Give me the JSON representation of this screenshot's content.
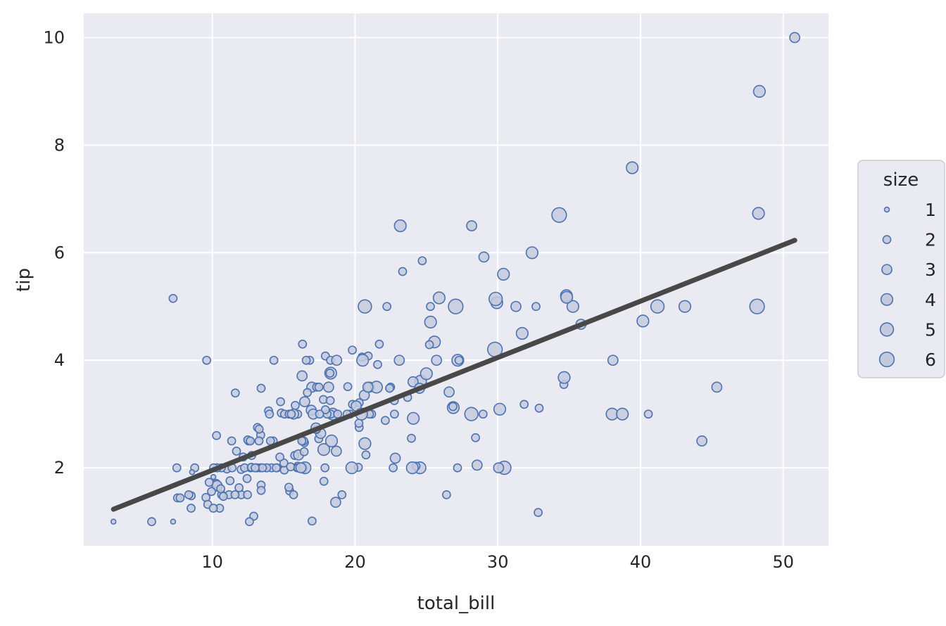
{
  "chart_data": {
    "type": "scatter",
    "title": "",
    "xlabel": "total_bill",
    "ylabel": "tip",
    "xlim": [
      0.99,
      53.17
    ],
    "ylim": [
      0.55,
      10.45
    ],
    "xticks": [
      10,
      20,
      30,
      40,
      50
    ],
    "yticks": [
      2,
      4,
      6,
      8,
      10
    ],
    "grid": true,
    "legend": {
      "title": "size",
      "placement": "right",
      "entries": [
        "1",
        "2",
        "3",
        "4",
        "5",
        "6"
      ]
    },
    "colors": {
      "background": "#eaeaf2",
      "grid": "#ffffff",
      "marker_fill": "#c4cade",
      "marker_edge": "#4c72b0",
      "line": "#484848"
    },
    "regression_line": {
      "x": [
        3.07,
        50.81
      ],
      "y": [
        1.23,
        6.23
      ]
    },
    "points": [
      [
        16.99,
        1.01,
        2
      ],
      [
        10.34,
        1.66,
        3
      ],
      [
        21.01,
        3.5,
        3
      ],
      [
        23.68,
        3.31,
        2
      ],
      [
        24.59,
        3.61,
        4
      ],
      [
        25.29,
        4.71,
        4
      ],
      [
        8.77,
        2.0,
        2
      ],
      [
        26.88,
        3.12,
        4
      ],
      [
        15.04,
        1.96,
        2
      ],
      [
        14.78,
        3.23,
        2
      ],
      [
        10.27,
        1.71,
        2
      ],
      [
        35.26,
        5.0,
        4
      ],
      [
        15.42,
        1.57,
        2
      ],
      [
        18.43,
        3.0,
        4
      ],
      [
        14.83,
        3.02,
        2
      ],
      [
        21.58,
        3.92,
        2
      ],
      [
        10.33,
        1.67,
        3
      ],
      [
        16.29,
        3.71,
        3
      ],
      [
        16.97,
        3.5,
        3
      ],
      [
        20.65,
        3.35,
        3
      ],
      [
        17.92,
        4.08,
        2
      ],
      [
        20.29,
        2.75,
        2
      ],
      [
        15.77,
        2.23,
        2
      ],
      [
        39.42,
        7.58,
        4
      ],
      [
        19.82,
        3.18,
        2
      ],
      [
        17.81,
        2.34,
        4
      ],
      [
        13.37,
        2.0,
        2
      ],
      [
        12.69,
        2.0,
        2
      ],
      [
        21.7,
        4.3,
        2
      ],
      [
        19.65,
        3.0,
        2
      ],
      [
        9.55,
        1.45,
        2
      ],
      [
        18.35,
        2.5,
        4
      ],
      [
        15.06,
        3.0,
        2
      ],
      [
        20.69,
        2.45,
        4
      ],
      [
        17.78,
        3.27,
        2
      ],
      [
        24.06,
        3.6,
        3
      ],
      [
        16.31,
        2.0,
        3
      ],
      [
        16.93,
        3.07,
        3
      ],
      [
        18.69,
        2.31,
        3
      ],
      [
        31.27,
        5.0,
        3
      ],
      [
        16.04,
        2.24,
        3
      ],
      [
        17.46,
        2.54,
        2
      ],
      [
        13.94,
        3.06,
        2
      ],
      [
        9.68,
        1.32,
        2
      ],
      [
        30.4,
        5.6,
        4
      ],
      [
        18.29,
        3.0,
        2
      ],
      [
        22.23,
        5.0,
        2
      ],
      [
        32.4,
        6.0,
        4
      ],
      [
        28.55,
        2.05,
        3
      ],
      [
        18.04,
        3.0,
        2
      ],
      [
        12.54,
        2.5,
        2
      ],
      [
        10.29,
        2.6,
        2
      ],
      [
        34.81,
        5.2,
        4
      ],
      [
        9.94,
        1.56,
        2
      ],
      [
        25.56,
        4.34,
        4
      ],
      [
        19.49,
        3.51,
        2
      ],
      [
        38.01,
        3.0,
        4
      ],
      [
        26.41,
        1.5,
        2
      ],
      [
        11.24,
        1.76,
        2
      ],
      [
        48.27,
        6.73,
        4
      ],
      [
        20.29,
        3.21,
        2
      ],
      [
        13.81,
        2.0,
        2
      ],
      [
        11.02,
        1.98,
        2
      ],
      [
        18.29,
        3.76,
        4
      ],
      [
        17.59,
        2.64,
        3
      ],
      [
        20.08,
        3.15,
        3
      ],
      [
        16.45,
        2.47,
        2
      ],
      [
        3.07,
        1.0,
        1
      ],
      [
        20.23,
        2.01,
        2
      ],
      [
        15.01,
        2.09,
        2
      ],
      [
        12.02,
        1.97,
        2
      ],
      [
        17.07,
        3.0,
        3
      ],
      [
        26.86,
        3.14,
        2
      ],
      [
        25.28,
        5.0,
        2
      ],
      [
        14.73,
        2.2,
        2
      ],
      [
        10.51,
        1.25,
        2
      ],
      [
        17.92,
        3.08,
        2
      ],
      [
        27.2,
        4.0,
        4
      ],
      [
        22.76,
        3.0,
        2
      ],
      [
        17.29,
        2.71,
        2
      ],
      [
        19.44,
        3.0,
        2
      ],
      [
        16.66,
        3.4,
        2
      ],
      [
        10.07,
        1.83,
        1
      ],
      [
        32.68,
        5.0,
        2
      ],
      [
        15.98,
        2.03,
        2
      ],
      [
        34.83,
        5.17,
        4
      ],
      [
        13.03,
        2.0,
        2
      ],
      [
        18.28,
        4.0,
        2
      ],
      [
        24.71,
        5.85,
        2
      ],
      [
        21.16,
        3.0,
        2
      ],
      [
        28.97,
        3.0,
        2
      ],
      [
        22.49,
        3.5,
        2
      ],
      [
        5.75,
        1.0,
        2
      ],
      [
        16.32,
        4.3,
        2
      ],
      [
        22.75,
        3.25,
        2
      ],
      [
        40.17,
        4.73,
        4
      ],
      [
        27.28,
        4.0,
        2
      ],
      [
        12.03,
        1.5,
        2
      ],
      [
        21.01,
        3.0,
        2
      ],
      [
        12.46,
        1.5,
        2
      ],
      [
        11.35,
        2.5,
        2
      ],
      [
        15.38,
        3.0,
        2
      ],
      [
        44.3,
        2.5,
        3
      ],
      [
        22.42,
        3.48,
        2
      ],
      [
        20.92,
        4.08,
        2
      ],
      [
        15.36,
        1.64,
        2
      ],
      [
        20.49,
        4.06,
        2
      ],
      [
        25.21,
        4.29,
        2
      ],
      [
        18.24,
        3.76,
        2
      ],
      [
        14.31,
        4.0,
        2
      ],
      [
        14.0,
        3.0,
        2
      ],
      [
        7.25,
        1.0,
        1
      ],
      [
        38.07,
        4.0,
        3
      ],
      [
        23.95,
        2.55,
        2
      ],
      [
        25.71,
        4.0,
        3
      ],
      [
        17.31,
        3.5,
        2
      ],
      [
        29.93,
        5.07,
        4
      ],
      [
        10.65,
        1.5,
        2
      ],
      [
        12.43,
        1.8,
        2
      ],
      [
        24.08,
        2.92,
        4
      ],
      [
        11.69,
        2.31,
        2
      ],
      [
        13.42,
        1.68,
        2
      ],
      [
        14.26,
        2.5,
        2
      ],
      [
        15.95,
        2.0,
        2
      ],
      [
        12.48,
        2.52,
        2
      ],
      [
        29.8,
        4.2,
        6
      ],
      [
        8.52,
        1.48,
        2
      ],
      [
        14.52,
        2.0,
        2
      ],
      [
        11.38,
        2.0,
        2
      ],
      [
        22.82,
        2.18,
        3
      ],
      [
        19.08,
        1.5,
        2
      ],
      [
        20.27,
        2.83,
        2
      ],
      [
        11.17,
        1.5,
        2
      ],
      [
        12.26,
        2.0,
        2
      ],
      [
        18.26,
        3.25,
        2
      ],
      [
        8.51,
        1.25,
        2
      ],
      [
        10.33,
        2.0,
        2
      ],
      [
        14.15,
        2.0,
        2
      ],
      [
        16.0,
        2.0,
        2
      ],
      [
        13.16,
        2.75,
        2
      ],
      [
        17.47,
        3.5,
        2
      ],
      [
        34.3,
        6.7,
        6
      ],
      [
        41.19,
        5.0,
        5
      ],
      [
        27.05,
        5.0,
        6
      ],
      [
        16.43,
        2.3,
        2
      ],
      [
        8.35,
        1.5,
        2
      ],
      [
        18.64,
        1.36,
        3
      ],
      [
        11.87,
        1.63,
        2
      ],
      [
        9.78,
        1.73,
        2
      ],
      [
        7.51,
        2.0,
        2
      ],
      [
        14.07,
        2.5,
        2
      ],
      [
        13.13,
        2.0,
        2
      ],
      [
        17.26,
        2.74,
        3
      ],
      [
        24.55,
        2.0,
        4
      ],
      [
        19.77,
        2.0,
        4
      ],
      [
        29.85,
        5.14,
        5
      ],
      [
        48.17,
        5.0,
        6
      ],
      [
        25.0,
        3.75,
        4
      ],
      [
        13.39,
        2.61,
        2
      ],
      [
        16.49,
        2.0,
        4
      ],
      [
        21.5,
        3.5,
        4
      ],
      [
        12.66,
        2.5,
        2
      ],
      [
        16.21,
        2.0,
        3
      ],
      [
        13.81,
        2.0,
        2
      ],
      [
        17.51,
        3.0,
        2
      ],
      [
        24.52,
        3.48,
        3
      ],
      [
        20.76,
        2.24,
        2
      ],
      [
        31.71,
        4.5,
        4
      ],
      [
        10.59,
        1.61,
        2
      ],
      [
        10.63,
        2.0,
        2
      ],
      [
        50.81,
        10.0,
        3
      ],
      [
        15.81,
        3.16,
        2
      ],
      [
        7.25,
        5.15,
        2
      ],
      [
        31.85,
        3.18,
        2
      ],
      [
        16.82,
        4.0,
        2
      ],
      [
        32.9,
        3.11,
        2
      ],
      [
        17.89,
        2.0,
        2
      ],
      [
        14.48,
        2.0,
        2
      ],
      [
        9.6,
        4.0,
        2
      ],
      [
        34.63,
        3.55,
        2
      ],
      [
        34.65,
        3.68,
        4
      ],
      [
        23.33,
        5.65,
        2
      ],
      [
        45.35,
        3.5,
        3
      ],
      [
        23.17,
        6.5,
        4
      ],
      [
        40.55,
        3.0,
        2
      ],
      [
        20.69,
        5.0,
        5
      ],
      [
        20.9,
        3.5,
        3
      ],
      [
        30.46,
        2.0,
        5
      ],
      [
        18.15,
        3.5,
        3
      ],
      [
        23.1,
        4.0,
        3
      ],
      [
        15.69,
        1.5,
        2
      ],
      [
        19.81,
        4.19,
        2
      ],
      [
        28.44,
        2.56,
        2
      ],
      [
        15.48,
        2.02,
        2
      ],
      [
        16.58,
        4.0,
        2
      ],
      [
        7.56,
        1.44,
        2
      ],
      [
        10.34,
        2.0,
        2
      ],
      [
        43.11,
        5.0,
        4
      ],
      [
        13.0,
        2.0,
        2
      ],
      [
        13.51,
        2.0,
        2
      ],
      [
        18.71,
        4.0,
        3
      ],
      [
        12.74,
        2.01,
        2
      ],
      [
        13.0,
        2.0,
        2
      ],
      [
        16.4,
        2.5,
        2
      ],
      [
        20.53,
        4.0,
        4
      ],
      [
        16.47,
        3.23,
        3
      ],
      [
        26.59,
        3.41,
        3
      ],
      [
        38.73,
        3.0,
        4
      ],
      [
        24.27,
        2.03,
        2
      ],
      [
        12.76,
        2.23,
        2
      ],
      [
        30.06,
        2.0,
        3
      ],
      [
        25.89,
        5.16,
        4
      ],
      [
        48.33,
        9.0,
        4
      ],
      [
        13.27,
        2.5,
        2
      ],
      [
        28.17,
        6.5,
        3
      ],
      [
        12.9,
        1.1,
        2
      ],
      [
        28.15,
        3.0,
        5
      ],
      [
        11.59,
        1.5,
        2
      ],
      [
        7.74,
        1.44,
        2
      ],
      [
        30.14,
        3.09,
        4
      ],
      [
        12.16,
        2.2,
        2
      ],
      [
        13.42,
        3.48,
        2
      ],
      [
        8.58,
        1.92,
        1
      ],
      [
        15.98,
        3.0,
        2
      ],
      [
        13.42,
        1.58,
        2
      ],
      [
        16.27,
        2.5,
        2
      ],
      [
        10.09,
        2.0,
        2
      ],
      [
        20.45,
        3.0,
        4
      ],
      [
        13.28,
        2.72,
        2
      ],
      [
        22.12,
        2.88,
        2
      ],
      [
        24.01,
        2.0,
        4
      ],
      [
        15.69,
        3.0,
        3
      ],
      [
        11.61,
        3.39,
        2
      ],
      [
        10.77,
        1.47,
        2
      ],
      [
        15.53,
        3.0,
        2
      ],
      [
        10.07,
        1.25,
        2
      ],
      [
        12.6,
        1.0,
        2
      ],
      [
        32.83,
        1.17,
        2
      ],
      [
        35.83,
        4.67,
        3
      ],
      [
        29.03,
        5.92,
        3
      ],
      [
        27.18,
        2.0,
        2
      ],
      [
        22.67,
        2.0,
        2
      ],
      [
        17.82,
        1.75,
        2
      ],
      [
        18.78,
        3.0,
        2
      ]
    ]
  }
}
